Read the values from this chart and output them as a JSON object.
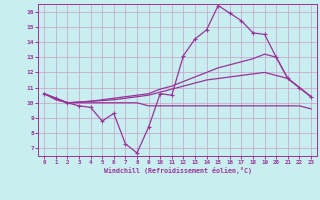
{
  "bg_color": "#c8eef0",
  "grid_color": "#c8a0c8",
  "line_color": "#993399",
  "xlabel": "Windchill (Refroidissement éolien,°C)",
  "xlim": [
    -0.5,
    23.5
  ],
  "ylim": [
    6.5,
    16.5
  ],
  "yticks": [
    7,
    8,
    9,
    10,
    11,
    12,
    13,
    14,
    15,
    16
  ],
  "xticks": [
    0,
    1,
    2,
    3,
    4,
    5,
    6,
    7,
    8,
    9,
    10,
    11,
    12,
    13,
    14,
    15,
    16,
    17,
    18,
    19,
    20,
    21,
    22,
    23
  ],
  "line1_x": [
    0,
    1,
    2,
    3,
    4,
    5,
    6,
    7,
    8,
    9,
    10,
    11,
    12,
    13,
    14,
    15,
    16,
    17,
    18,
    19,
    20,
    21,
    22,
    23
  ],
  "line1_y": [
    10.6,
    10.3,
    10.0,
    9.8,
    9.7,
    8.8,
    9.3,
    7.3,
    6.7,
    8.4,
    10.6,
    10.5,
    13.1,
    14.2,
    14.8,
    16.4,
    15.9,
    15.4,
    14.6,
    14.5,
    13.0,
    11.6,
    11.0,
    10.4
  ],
  "line2_x": [
    0,
    1,
    2,
    3,
    4,
    5,
    6,
    7,
    8,
    9,
    10,
    11,
    12,
    13,
    14,
    15,
    16,
    17,
    18,
    19,
    20,
    21,
    22,
    23
  ],
  "line2_y": [
    10.6,
    10.2,
    10.0,
    10.0,
    10.0,
    10.0,
    10.0,
    10.0,
    10.0,
    9.8,
    9.8,
    9.8,
    9.8,
    9.8,
    9.8,
    9.8,
    9.8,
    9.8,
    9.8,
    9.8,
    9.8,
    9.8,
    9.8,
    9.6
  ],
  "line3_x": [
    0,
    1,
    2,
    3,
    4,
    5,
    6,
    7,
    8,
    9,
    10,
    11,
    12,
    13,
    14,
    15,
    16,
    17,
    18,
    19,
    20,
    21,
    22,
    23
  ],
  "line3_y": [
    10.6,
    10.3,
    10.0,
    10.05,
    10.1,
    10.2,
    10.3,
    10.4,
    10.5,
    10.6,
    10.9,
    11.1,
    11.4,
    11.7,
    12.0,
    12.3,
    12.5,
    12.7,
    12.9,
    13.2,
    13.0,
    11.6,
    11.0,
    10.4
  ],
  "line4_x": [
    0,
    1,
    2,
    3,
    4,
    5,
    6,
    7,
    8,
    9,
    10,
    11,
    12,
    13,
    14,
    15,
    16,
    17,
    18,
    19,
    20,
    21,
    22,
    23
  ],
  "line4_y": [
    10.6,
    10.3,
    10.0,
    10.05,
    10.1,
    10.15,
    10.2,
    10.3,
    10.4,
    10.5,
    10.7,
    10.9,
    11.1,
    11.3,
    11.5,
    11.6,
    11.7,
    11.8,
    11.9,
    12.0,
    11.8,
    11.6,
    11.0,
    10.4
  ]
}
